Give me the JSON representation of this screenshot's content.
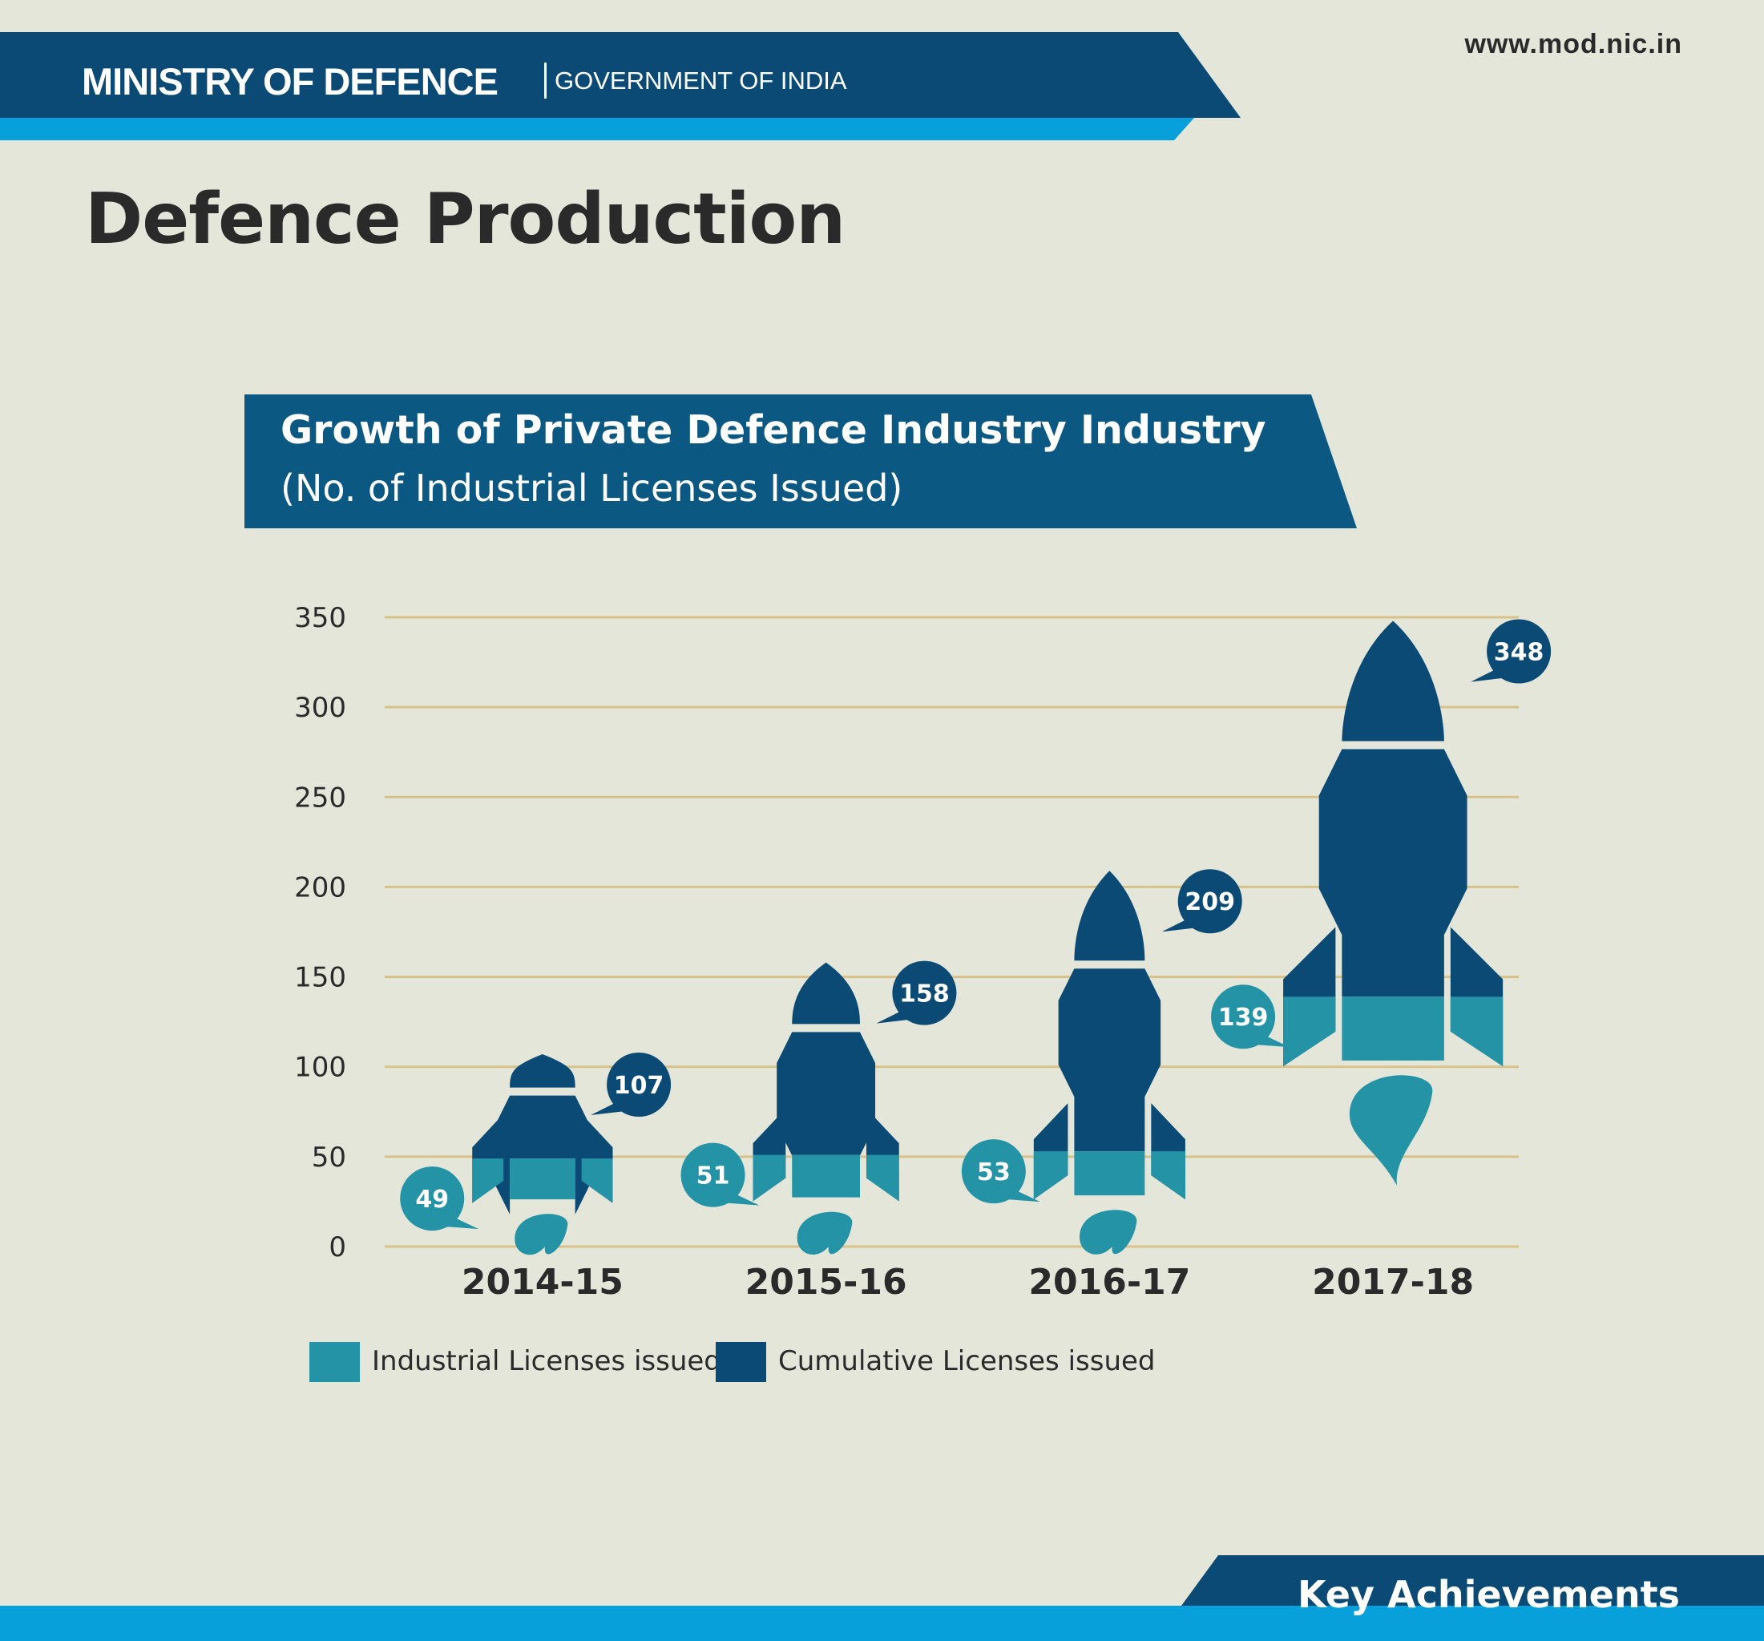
{
  "header": {
    "ministry": "MINISTRY OF DEFENCE",
    "government": "GOVERNMENT OF INDIA",
    "website": "www.mod.nic.in"
  },
  "page_title": "Defence Production",
  "footer": {
    "label": "Key Achievements"
  },
  "colors": {
    "background": "#e4e6d9",
    "dark_blue": "#0a4a74",
    "bright_blue": "#07a0db",
    "teal": "#2593a6",
    "gridline": "#d9c28a",
    "text": "#2a2a2a"
  },
  "chart_data": {
    "type": "bar",
    "title": "Growth of Private Defence Industry Industry",
    "subtitle": "(No. of Industrial Licenses Issued)",
    "categories": [
      "2014-15",
      "2015-16",
      "2016-17",
      "2017-18"
    ],
    "yticks": [
      "0",
      "50",
      "100",
      "150",
      "200",
      "250",
      "300",
      "350"
    ],
    "ylim": [
      0,
      350
    ],
    "grid": true,
    "legend_position": "bottom-left",
    "series": [
      {
        "name": "Industrial Licenses issued",
        "values": [
          49,
          51,
          53,
          139
        ],
        "color": "#2593a6",
        "labels": [
          "49",
          "51",
          "53",
          "139"
        ]
      },
      {
        "name": "Cumulative Licenses issued",
        "values": [
          107,
          158,
          209,
          348
        ],
        "color": "#0a4a74",
        "labels": [
          "107",
          "158",
          "209",
          "348"
        ]
      }
    ]
  }
}
